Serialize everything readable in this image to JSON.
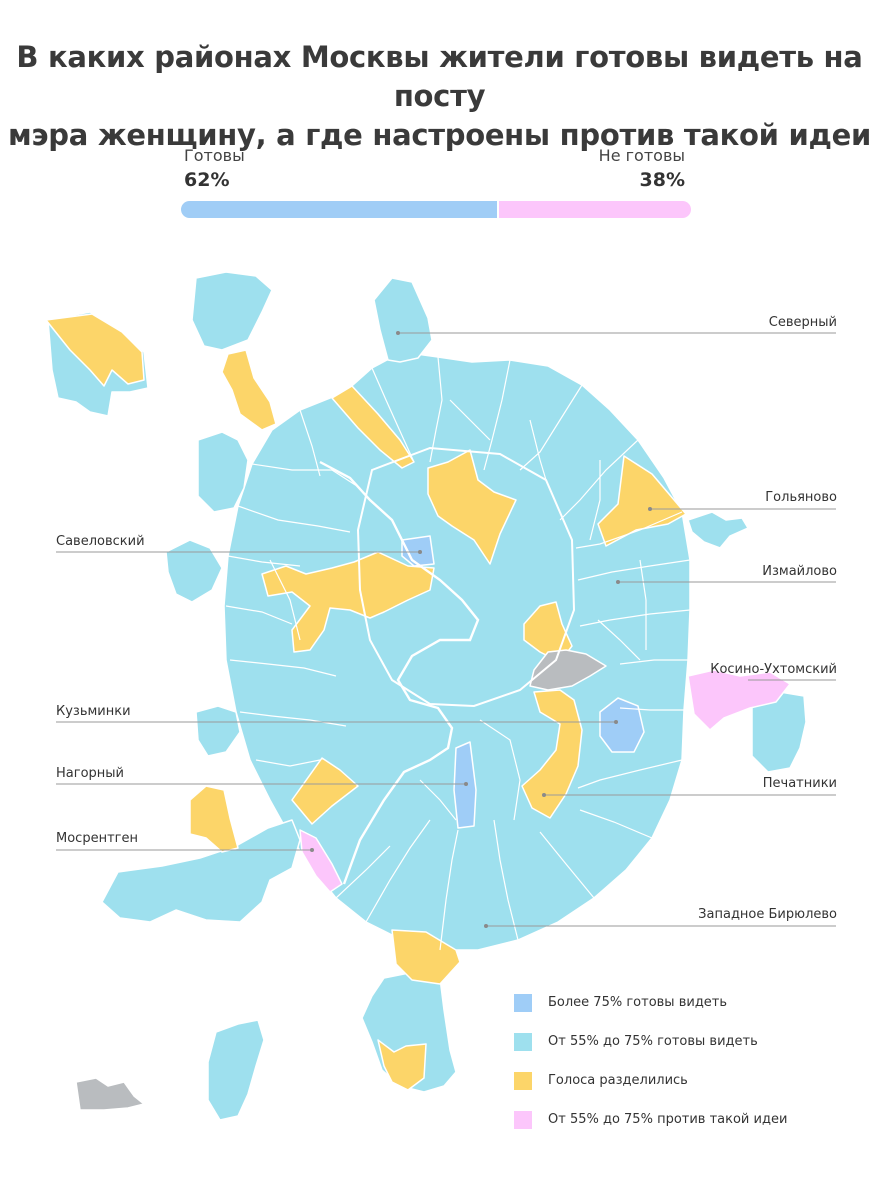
{
  "title": {
    "line1": "В каких районах Москвы жители готовы видеть на посту",
    "line2": "мэра женщину, а где настроены против такой идеи"
  },
  "summary": {
    "yes_label": "Готовы",
    "yes_value": "62%",
    "yes_fraction": 0.62,
    "no_label": "Не готовы",
    "no_value": "38%",
    "no_fraction": 0.38
  },
  "colors": {
    "yes_bar": "#a0cdf6",
    "no_bar": "#fcc6fb",
    "over75_yes": "#9fcdf7",
    "yes_55_75": "#9ee0ee",
    "split": "#fcd569",
    "against_55_75": "#fcc6fb",
    "no_data": "#b9bcbf",
    "district_border": "#ffffff"
  },
  "legend": [
    {
      "label": "Более 75% готовы видеть",
      "color": "#9fcdf7"
    },
    {
      "label": "От 55% до 75% готовы видеть",
      "color": "#9ee0ee"
    },
    {
      "label": "Голоса разделились",
      "color": "#fcd569"
    },
    {
      "label": "От 55% до 75% против такой идеи",
      "color": "#fcc6fb"
    }
  ],
  "callouts": [
    {
      "name": "Северный",
      "side": "right"
    },
    {
      "name": "Гольяново",
      "side": "right"
    },
    {
      "name": "Савеловский",
      "side": "left"
    },
    {
      "name": "Измайлово",
      "side": "right"
    },
    {
      "name": "Косино-Ухтомский",
      "side": "right"
    },
    {
      "name": "Кузьминки",
      "side": "left"
    },
    {
      "name": "Нагорный",
      "side": "left"
    },
    {
      "name": "Печатники",
      "side": "right"
    },
    {
      "name": "Мосрентген",
      "side": "left"
    },
    {
      "name": "Западное Бирюлево",
      "side": "right"
    }
  ]
}
